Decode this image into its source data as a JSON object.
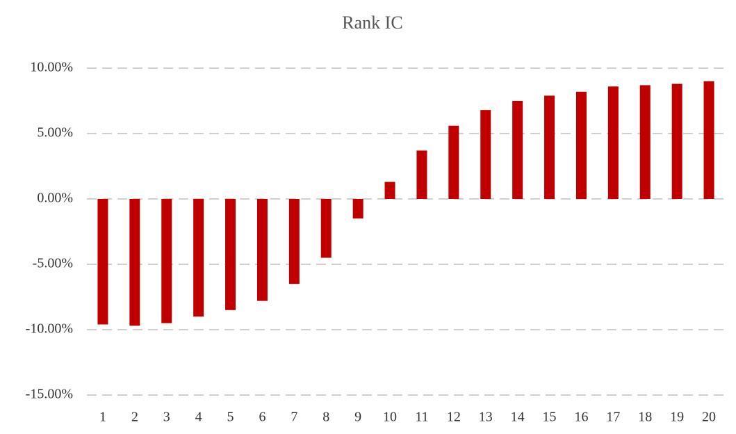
{
  "chart_data": {
    "type": "bar",
    "title": "Rank IC",
    "categories": [
      "1",
      "2",
      "3",
      "4",
      "5",
      "6",
      "7",
      "8",
      "9",
      "10",
      "11",
      "12",
      "13",
      "14",
      "15",
      "16",
      "17",
      "18",
      "19",
      "20"
    ],
    "values": [
      -9.6,
      -9.7,
      -9.5,
      -9.0,
      -8.5,
      -7.8,
      -6.5,
      -4.5,
      -1.5,
      1.3,
      3.7,
      5.6,
      6.8,
      7.5,
      7.9,
      8.2,
      8.6,
      8.7,
      8.8,
      9.0
    ],
    "color": "#c00000",
    "ylim": [
      -15,
      10
    ],
    "yticks": [
      {
        "value": -15,
        "label": "-15.00%"
      },
      {
        "value": -10,
        "label": "-10.00%"
      },
      {
        "value": -5,
        "label": "-5.00%"
      },
      {
        "value": 0,
        "label": "0.00%"
      },
      {
        "value": 5,
        "label": "5.00%"
      },
      {
        "value": 10,
        "label": "10.00%"
      }
    ],
    "grid": true
  }
}
